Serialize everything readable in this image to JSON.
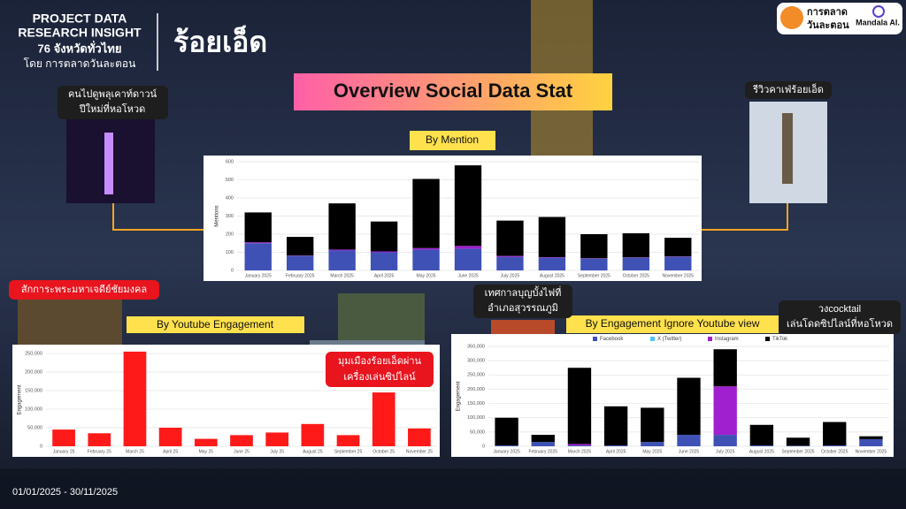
{
  "header": {
    "project": [
      "PROJECT DATA",
      "RESEARCH INSIGHT"
    ],
    "subtitle": "76 จังหวัดทั่วไทย",
    "by": "โดย การตลาดวันละตอน",
    "province": "ร้อยเอ็ด"
  },
  "logos": {
    "brand": [
      "การตลาด",
      "วันละตอน"
    ],
    "mandala": "Mandala AI."
  },
  "title": "Overview Social Data Stat",
  "date_range": "01/01/2025 - 30/11/2025",
  "annotations": [
    [
      "คนไปดูพลุเคาท์ดาวน์",
      "ปีใหม่ที่หอโหวด"
    ],
    [
      "รีวิวคาเฟ่ร้อยเอ็ด"
    ],
    [
      "สักการะพระมหาเจดีย์ชัยมงคล"
    ],
    [
      "เทศกาลบุญบั้งไฟที่",
      "อำเภอสุวรรณภูมิ"
    ],
    [
      "วงcocktail",
      "เล่นโดดซิปไลน์ที่หอโหวด"
    ],
    [
      "มุมเมืองร้อยเอ็ดผ่าน",
      "เครื่องเล่นซิปไลน์"
    ]
  ],
  "chart_data": [
    {
      "type": "stacked-bar",
      "title": "By Mention",
      "ylabel": "Mentions",
      "categories": [
        "January 2025",
        "February 2025",
        "March 2025",
        "April 2025",
        "May 2025",
        "June 2025",
        "July 2025",
        "August 2025",
        "September 2025",
        "October 2025",
        "November 2025"
      ],
      "series": [
        {
          "color": "#3f51b5",
          "values": [
            150,
            80,
            110,
            100,
            115,
            120,
            75,
            70,
            65,
            70,
            75
          ]
        },
        {
          "color": "#a020d0",
          "values": [
            5,
            2,
            5,
            5,
            8,
            15,
            5,
            3,
            2,
            2,
            2
          ]
        },
        {
          "color": "#000000",
          "values": [
            165,
            103,
            255,
            165,
            382,
            445,
            195,
            222,
            133,
            133,
            103
          ]
        }
      ],
      "ylim": [
        0,
        600
      ],
      "yticks": [
        0,
        100,
        200,
        300,
        400,
        500,
        600
      ],
      "grid": true
    },
    {
      "type": "bar",
      "title": "By  Youtube Engagement",
      "ylabel": "Engagement",
      "categories": [
        "January 25",
        "February 25",
        "March 25",
        "April 25",
        "May 25",
        "June 25",
        "July 25",
        "August 25",
        "September 25",
        "October 25",
        "November 25"
      ],
      "values": [
        45000,
        35000,
        255000,
        50000,
        20000,
        30000,
        37000,
        60000,
        30000,
        145000,
        48000
      ],
      "color": "#ff1a1a",
      "ylim": [
        0,
        250000
      ],
      "yticks": [
        0,
        {
          "value": 50000,
          "label": "50,000"
        },
        {
          "value": 100000,
          "label": "100,000"
        },
        {
          "value": 150000,
          "label": "150,000"
        },
        {
          "value": 200000,
          "label": "200,000"
        },
        {
          "value": 250000,
          "label": "250,000"
        }
      ],
      "grid": true
    },
    {
      "type": "stacked-bar",
      "title": "By Engagement Ignore Youtube view",
      "ylabel": "Engagement",
      "categories": [
        "January 2025",
        "February 2025",
        "March 2025",
        "April 2025",
        "May 2025",
        "June 2025",
        "July 2025",
        "August 2025",
        "September 2025",
        "October 2025",
        "November 2025"
      ],
      "series": [
        {
          "name": "Facebook",
          "color": "#3f51b5",
          "values": [
            3000,
            15000,
            3000,
            3000,
            15000,
            40000,
            40000,
            3000,
            2000,
            3000,
            25000
          ]
        },
        {
          "name": "X (Twitter)",
          "color": "#4fc3f7",
          "values": [
            0,
            0,
            0,
            0,
            0,
            0,
            0,
            0,
            0,
            0,
            0
          ]
        },
        {
          "name": "Instagram",
          "color": "#a020d0",
          "values": [
            0,
            0,
            5000,
            0,
            0,
            0,
            170000,
            0,
            0,
            0,
            0
          ]
        },
        {
          "name": "TikTok",
          "color": "#000000",
          "values": [
            97000,
            25000,
            267000,
            137000,
            120000,
            200000,
            130000,
            72000,
            28000,
            82000,
            10000
          ]
        }
      ],
      "ylim": [
        0,
        350000
      ],
      "yticks": [
        0,
        {
          "value": 50000,
          "label": "50,000"
        },
        {
          "value": 100000,
          "label": "100,000"
        },
        {
          "value": 150000,
          "label": "150,000"
        },
        {
          "value": 200000,
          "label": "200,000"
        },
        {
          "value": 250000,
          "label": "250,000"
        },
        {
          "value": 300000,
          "label": "300,000"
        },
        {
          "value": 350000,
          "label": "350,000"
        }
      ],
      "grid": true,
      "legend": "top"
    }
  ]
}
